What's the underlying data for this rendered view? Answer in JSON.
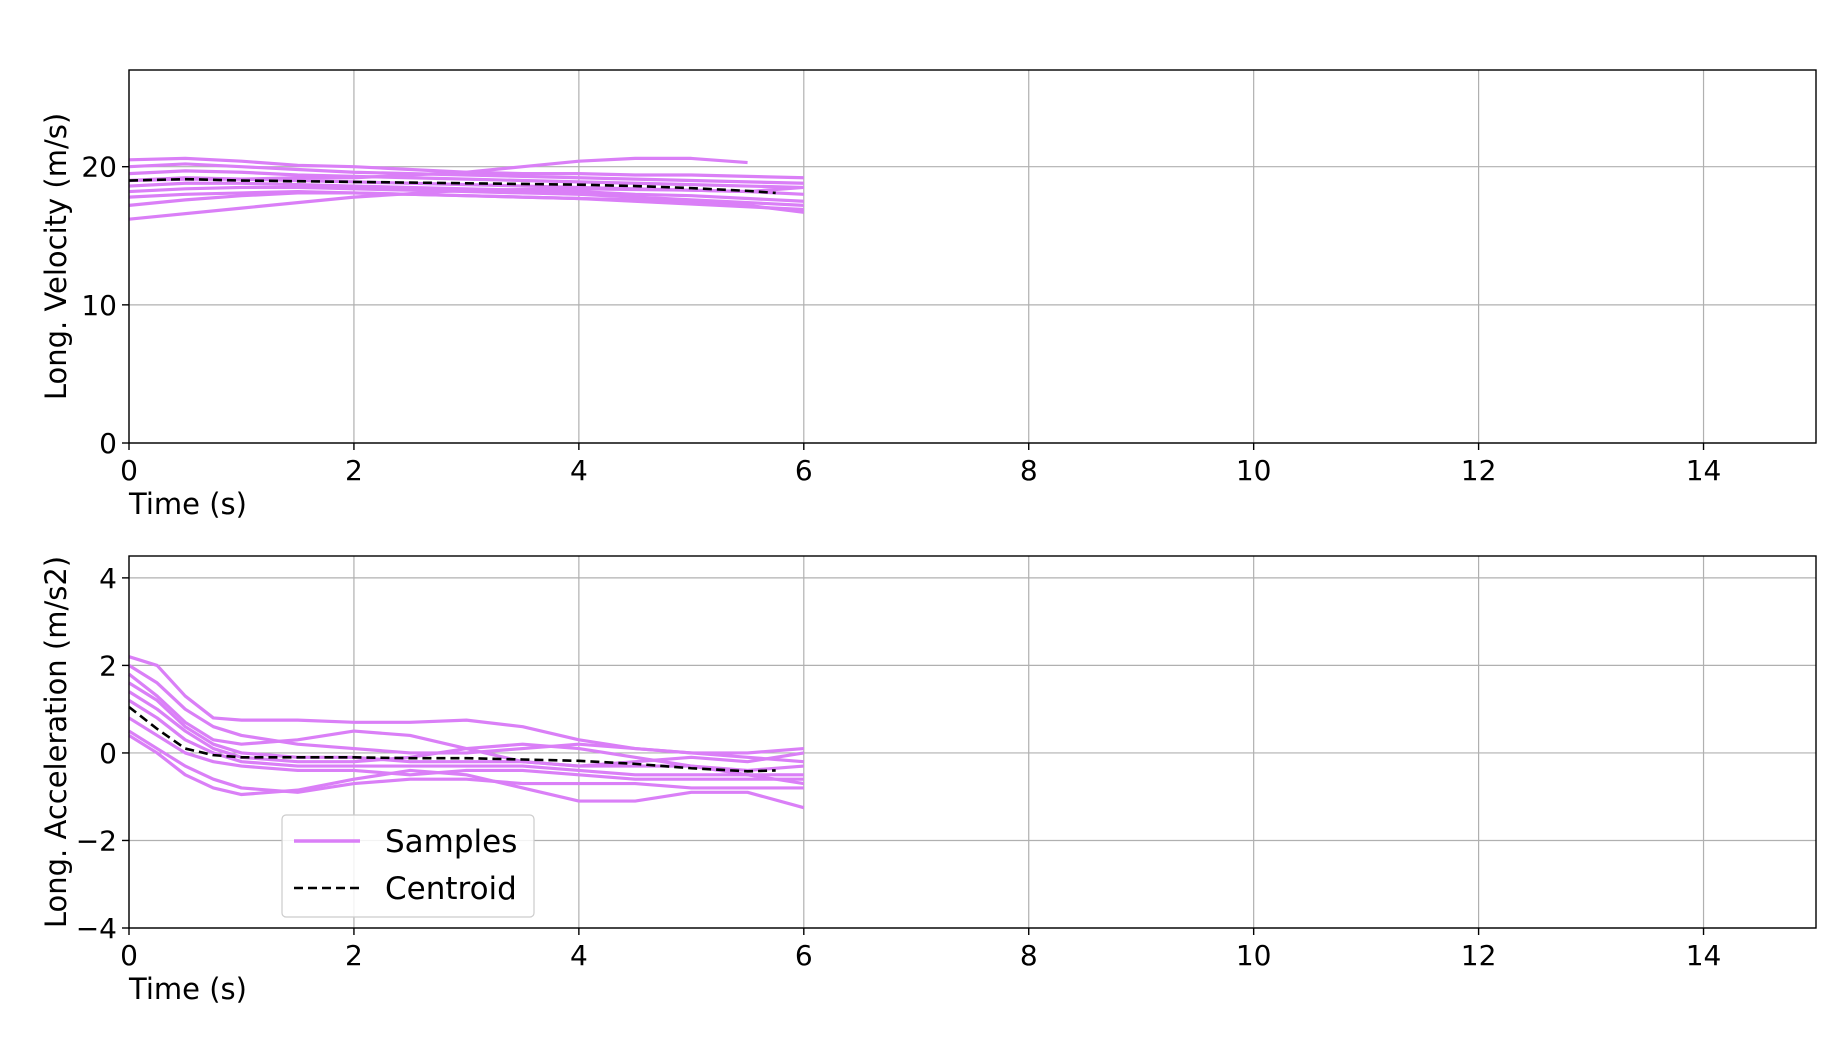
{
  "colors": {
    "samples": "#da7ff7",
    "centroid": "#000000",
    "grid": "#b0b0b0"
  },
  "legend": {
    "placement": "lower-left",
    "entries": [
      "Samples",
      "Centroid"
    ]
  },
  "chart_data": [
    {
      "type": "line",
      "name": "velocity",
      "xlabel": "Time (s)",
      "ylabel": "Long. Velocity (m/s)",
      "xlim": [
        0,
        15
      ],
      "ylim": [
        0,
        27
      ],
      "xticks": [
        0,
        2,
        4,
        6,
        8,
        10,
        12,
        14
      ],
      "yticks": [
        0,
        10,
        20
      ],
      "grid": true,
      "series": [
        {
          "name": "Samples",
          "role": "samples",
          "x": [
            0,
            0.5,
            1,
            1.5,
            2,
            2.5,
            3,
            3.5,
            4,
            4.5,
            5,
            5.5,
            6.0
          ],
          "y": [
            20.5,
            20.6,
            20.4,
            20.1,
            20.0,
            19.8,
            19.6,
            19.5,
            19.5,
            19.4,
            19.4,
            19.3,
            19.2
          ]
        },
        {
          "name": "Samples",
          "role": "samples",
          "x": [
            0,
            0.5,
            1,
            1.5,
            2,
            2.5,
            3,
            3.5,
            4,
            4.5,
            5,
            5.5,
            6.0
          ],
          "y": [
            20.0,
            20.2,
            20.0,
            19.8,
            19.6,
            19.5,
            19.4,
            19.3,
            19.2,
            19.1,
            19.0,
            18.9,
            18.8
          ]
        },
        {
          "name": "Samples",
          "role": "samples",
          "x": [
            0,
            0.5,
            1,
            1.5,
            2,
            2.5,
            3,
            3.5,
            4,
            4.5,
            5,
            5.5,
            6.0
          ],
          "y": [
            19.5,
            19.7,
            19.6,
            19.4,
            19.3,
            19.2,
            19.1,
            19.0,
            18.9,
            18.8,
            18.7,
            18.6,
            18.5
          ]
        },
        {
          "name": "Samples",
          "role": "samples",
          "x": [
            0,
            0.5,
            1,
            1.5,
            2,
            2.5,
            3,
            3.5,
            4,
            4.5,
            5,
            5.5,
            6.0
          ],
          "y": [
            19.0,
            19.2,
            19.1,
            19.0,
            18.9,
            18.8,
            18.7,
            18.6,
            18.5,
            18.4,
            18.3,
            18.2,
            18.0
          ]
        },
        {
          "name": "Samples",
          "role": "samples",
          "x": [
            0,
            0.5,
            1,
            1.5,
            2,
            2.5,
            3,
            3.5,
            4,
            4.5,
            5,
            5.5,
            6.0
          ],
          "y": [
            18.6,
            18.8,
            18.8,
            18.7,
            18.6,
            18.5,
            18.4,
            18.3,
            18.2,
            18.0,
            17.9,
            17.7,
            17.5
          ]
        },
        {
          "name": "Samples",
          "role": "samples",
          "x": [
            0,
            0.5,
            1,
            1.5,
            2,
            2.5,
            3,
            3.5,
            4,
            4.5,
            5,
            5.5,
            6.0
          ],
          "y": [
            18.2,
            18.4,
            18.5,
            18.5,
            18.4,
            18.3,
            18.2,
            18.1,
            18.0,
            17.8,
            17.6,
            17.4,
            17.2
          ]
        },
        {
          "name": "Samples",
          "role": "samples",
          "x": [
            0,
            0.5,
            1,
            1.5,
            2,
            2.5,
            3,
            3.5,
            4,
            4.5,
            5,
            5.5,
            6.0
          ],
          "y": [
            17.8,
            18.0,
            18.1,
            18.2,
            18.1,
            18.0,
            17.9,
            17.8,
            17.7,
            17.5,
            17.3,
            17.1,
            16.9
          ]
        },
        {
          "name": "Samples",
          "role": "samples",
          "x": [
            0,
            0.5,
            1,
            1.5,
            2,
            2.5,
            3,
            3.5,
            4,
            4.5,
            5,
            5.5,
            6.0
          ],
          "y": [
            17.2,
            17.6,
            17.9,
            18.1,
            18.1,
            18.0,
            17.9,
            17.8,
            17.7,
            17.6,
            17.4,
            17.2,
            16.7
          ]
        },
        {
          "name": "Samples",
          "role": "samples",
          "x": [
            0,
            0.5,
            1,
            1.5,
            2,
            2.5,
            3,
            3.5,
            4,
            4.5,
            5,
            5.5
          ],
          "y": [
            19.0,
            19.1,
            19.1,
            19.2,
            19.2,
            19.4,
            19.6,
            20.0,
            20.4,
            20.6,
            20.6,
            20.3
          ]
        },
        {
          "name": "Samples",
          "role": "samples",
          "x": [
            0,
            1,
            2,
            3,
            4,
            5,
            5.5,
            6.0
          ],
          "y": [
            16.2,
            17.0,
            17.8,
            18.3,
            18.4,
            18.3,
            18.2,
            18.5
          ]
        },
        {
          "name": "Centroid",
          "role": "centroid",
          "x": [
            0,
            0.5,
            1,
            1.5,
            2,
            2.5,
            3,
            3.5,
            4,
            4.5,
            5,
            5.5,
            5.75
          ],
          "y": [
            19.0,
            19.1,
            19.0,
            18.95,
            18.9,
            18.85,
            18.8,
            18.75,
            18.7,
            18.6,
            18.45,
            18.25,
            18.1
          ]
        }
      ]
    },
    {
      "type": "line",
      "name": "acceleration",
      "xlabel": "Time (s)",
      "ylabel": "Long. Acceleration (m/s2)",
      "xlim": [
        0,
        15
      ],
      "ylim": [
        -4,
        4.5
      ],
      "xticks": [
        0,
        2,
        4,
        6,
        8,
        10,
        12,
        14
      ],
      "yticks": [
        -4,
        -2,
        0,
        2,
        4
      ],
      "grid": true,
      "series": [
        {
          "name": "Samples",
          "role": "samples",
          "x": [
            0,
            0.25,
            0.5,
            0.75,
            1,
            1.5,
            2,
            2.5,
            3,
            3.5,
            4,
            4.5,
            5,
            5.5,
            6.0
          ],
          "y": [
            2.2,
            2.0,
            1.3,
            0.8,
            0.75,
            0.75,
            0.7,
            0.7,
            0.75,
            0.6,
            0.3,
            0.1,
            0.0,
            -0.1,
            -0.2
          ]
        },
        {
          "name": "Samples",
          "role": "samples",
          "x": [
            0,
            0.25,
            0.5,
            0.75,
            1,
            1.5,
            2,
            2.5,
            3,
            3.5,
            4,
            4.5,
            5,
            5.5,
            6.0
          ],
          "y": [
            2.0,
            1.6,
            1.0,
            0.6,
            0.4,
            0.2,
            0.1,
            0.0,
            0.0,
            0.1,
            0.2,
            0.1,
            0.0,
            0.0,
            0.1
          ]
        },
        {
          "name": "Samples",
          "role": "samples",
          "x": [
            0,
            0.25,
            0.5,
            0.75,
            1,
            1.5,
            2,
            2.5,
            3,
            3.5,
            4,
            4.5,
            5,
            5.5,
            6.0
          ],
          "y": [
            1.6,
            1.2,
            0.6,
            0.2,
            0.0,
            -0.1,
            -0.1,
            -0.2,
            -0.2,
            -0.2,
            -0.3,
            -0.3,
            -0.3,
            -0.4,
            -0.3
          ]
        },
        {
          "name": "Samples",
          "role": "samples",
          "x": [
            0,
            0.25,
            0.5,
            0.75,
            1,
            1.5,
            2,
            2.5,
            3,
            3.5,
            4,
            4.5,
            5,
            5.5,
            6.0
          ],
          "y": [
            1.2,
            0.8,
            0.3,
            0.0,
            -0.2,
            -0.3,
            -0.3,
            -0.3,
            -0.3,
            -0.3,
            -0.4,
            -0.5,
            -0.5,
            -0.5,
            -0.5
          ]
        },
        {
          "name": "Samples",
          "role": "samples",
          "x": [
            0,
            0.25,
            0.5,
            0.75,
            1,
            1.5,
            2,
            2.5,
            3,
            3.5,
            4,
            4.5,
            5,
            5.5,
            6.0
          ],
          "y": [
            0.8,
            0.4,
            0.0,
            -0.2,
            -0.3,
            -0.4,
            -0.4,
            -0.5,
            -0.4,
            -0.4,
            -0.5,
            -0.6,
            -0.6,
            -0.6,
            -0.6
          ]
        },
        {
          "name": "Samples",
          "role": "samples",
          "x": [
            0,
            0.25,
            0.5,
            0.75,
            1,
            1.5,
            2,
            2.5,
            3,
            3.5,
            4,
            4.5,
            5,
            5.5,
            6.0
          ],
          "y": [
            0.5,
            0.1,
            -0.3,
            -0.6,
            -0.8,
            -0.9,
            -0.7,
            -0.6,
            -0.6,
            -0.7,
            -0.7,
            -0.7,
            -0.8,
            -0.8,
            -0.8
          ]
        },
        {
          "name": "Samples",
          "role": "samples",
          "x": [
            0,
            0.25,
            0.5,
            0.75,
            1,
            1.5,
            2,
            2.5,
            3,
            3.5,
            4,
            4.5,
            5,
            5.5,
            6.0
          ],
          "y": [
            0.4,
            0.0,
            -0.5,
            -0.8,
            -0.95,
            -0.85,
            -0.6,
            -0.4,
            -0.5,
            -0.8,
            -1.1,
            -1.1,
            -0.9,
            -0.9,
            -1.25
          ]
        },
        {
          "name": "Samples",
          "role": "samples",
          "x": [
            0,
            0.25,
            0.5,
            0.75,
            1,
            1.5,
            2,
            2.5,
            3,
            3.5,
            4,
            4.5,
            5,
            5.5,
            6.0
          ],
          "y": [
            1.8,
            1.3,
            0.7,
            0.3,
            0.2,
            0.3,
            0.5,
            0.4,
            0.1,
            -0.2,
            -0.3,
            -0.2,
            -0.1,
            -0.2,
            0.0
          ]
        },
        {
          "name": "Samples",
          "role": "samples",
          "x": [
            0,
            0.25,
            0.5,
            0.75,
            1,
            1.5,
            2,
            2.5,
            3,
            3.5,
            4,
            4.5,
            5,
            5.5,
            6.0
          ],
          "y": [
            1.4,
            1.0,
            0.5,
            0.1,
            -0.1,
            -0.2,
            -0.2,
            -0.1,
            0.1,
            0.2,
            0.1,
            -0.1,
            -0.3,
            -0.5,
            -0.7
          ]
        },
        {
          "name": "Centroid",
          "role": "centroid",
          "x": [
            0,
            0.25,
            0.5,
            0.75,
            1,
            1.5,
            2,
            2.5,
            3,
            3.5,
            4,
            4.5,
            5,
            5.5,
            5.75
          ],
          "y": [
            1.05,
            0.55,
            0.1,
            -0.05,
            -0.1,
            -0.1,
            -0.1,
            -0.12,
            -0.12,
            -0.15,
            -0.18,
            -0.25,
            -0.35,
            -0.42,
            -0.4
          ]
        }
      ]
    }
  ]
}
